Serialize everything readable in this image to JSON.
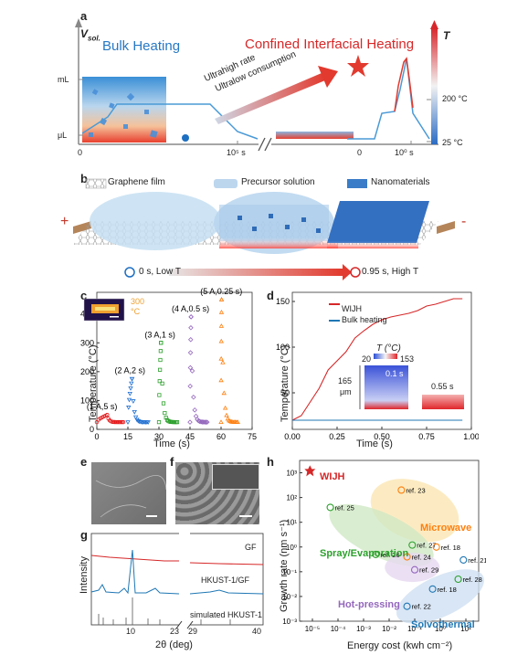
{
  "panels": {
    "a": {
      "label": "a",
      "ylabel": "V",
      "ylabel_sub": "sol.",
      "right_axis_label": "T",
      "bulk_title": "Bulk Heating",
      "confined_title": "Confined Interfacial Heating",
      "arrow_text_1": "Ultrahigh rate",
      "arrow_text_2": "Ultralow consumption",
      "y_ticks": [
        "mL",
        "μL"
      ],
      "x_ticks_left": [
        "0",
        "10⁵ s"
      ],
      "x_ticks_right": [
        "0",
        "10⁰ s"
      ],
      "right_ticks": [
        "200 °C",
        "25 °C"
      ],
      "colors": {
        "bulk": "#1f77b4",
        "confined": "#d62728"
      }
    },
    "b": {
      "label": "b",
      "legend": [
        "Graphene film",
        "Precursor solution",
        "Nanomaterials"
      ],
      "plus": "+",
      "minus": "-",
      "time_left": "0 s, Low T",
      "time_right": "0.95 s, High T"
    },
    "c": {
      "label": "c",
      "xlabel": "Time (s)",
      "ylabel": "Temperature (°C)",
      "xticks": [
        "0",
        "15",
        "30",
        "45",
        "60",
        "75"
      ],
      "yticks": [
        "0",
        "100",
        "200",
        "300",
        "400"
      ],
      "inset_label_1": "300",
      "inset_label_2": "°C",
      "pulses": [
        {
          "label": "(1 A,5 s)",
          "start": 0,
          "dur": 5,
          "peak": 50,
          "color": "#e41a1c",
          "marker": "circle"
        },
        {
          "label": "(2 A,2 s)",
          "start": 15,
          "dur": 2,
          "peak": 175,
          "color": "#1f6fd1",
          "marker": "triangle-down"
        },
        {
          "label": "(3 A,1 s)",
          "start": 30,
          "dur": 1,
          "peak": 300,
          "color": "#2ca02c",
          "marker": "square"
        },
        {
          "label": "(4 A,0.5 s)",
          "start": 45,
          "dur": 0.5,
          "peak": 390,
          "color": "#9467bd",
          "marker": "diamond"
        },
        {
          "label": "(5 A,0.25 s)",
          "start": 60,
          "dur": 0.25,
          "peak": 450,
          "color": "#ff7f0e",
          "marker": "triangle-up"
        }
      ]
    },
    "d": {
      "label": "d",
      "xlabel": "Time (s)",
      "ylabel": "Temperature (°C)",
      "xticks": [
        "0.00",
        "0.25",
        "0.50",
        "0.75",
        "1.00"
      ],
      "yticks": [
        "50",
        "100",
        "150"
      ],
      "legend": [
        "WIJH",
        "Bulk heating"
      ],
      "colorbar_title": "T (°C)",
      "colorbar_min": "20",
      "colorbar_max": "153",
      "inset_thickness": "165",
      "inset_unit": "μm",
      "inset_time_1": "0.1 s",
      "inset_time_2": "0.55 s",
      "series": [
        {
          "name": "WIJH",
          "color": "#d62728",
          "x": [
            0,
            0.05,
            0.1,
            0.15,
            0.2,
            0.25,
            0.3,
            0.35,
            0.4,
            0.45,
            0.5,
            0.55,
            0.6,
            0.65,
            0.7,
            0.75,
            0.8,
            0.85,
            0.9,
            0.95
          ],
          "y": [
            20,
            25,
            40,
            55,
            75,
            85,
            95,
            110,
            118,
            125,
            130,
            133,
            135,
            137,
            140,
            145,
            147,
            150,
            153,
            153
          ]
        },
        {
          "name": "Bulk heating",
          "color": "#1f77b4",
          "x": [
            0,
            0.95
          ],
          "y": [
            20,
            20
          ]
        }
      ]
    },
    "e": {
      "label": "e"
    },
    "f": {
      "label": "f"
    },
    "g": {
      "label": "g",
      "ylabel": "Intensity",
      "xlabel": "2θ (deg)",
      "xticks": [
        "10",
        "23",
        "29",
        "40"
      ],
      "traces": [
        "GF",
        "HKUST-1/GF",
        "simulated HKUST-1"
      ]
    },
    "h": {
      "label": "h",
      "xlabel": "Energy cost (kwh cm⁻²)",
      "ylabel": "Growth rate (nm s⁻¹)",
      "xticks": [
        "10⁻⁵",
        "10⁻⁴",
        "10⁻³",
        "10⁻²",
        "10⁻¹",
        "10⁰",
        "10¹"
      ],
      "yticks": [
        "10³",
        "10²",
        "10¹",
        "10⁰",
        "10⁻¹",
        "10⁻²",
        "10⁻³"
      ],
      "wijh_label": "WIJH",
      "regions": [
        "Microwave",
        "Spray/Evaporation",
        "Hot-pressing",
        "Solvothermal"
      ],
      "refs": [
        {
          "label": "ref. 23",
          "x": 0.03,
          "y": 200,
          "color": "#ff7f0e"
        },
        {
          "label": "ref. 25",
          "x": 5e-05,
          "y": 40,
          "color": "#2ca02c"
        },
        {
          "label": "ref. 27",
          "x": 0.08,
          "y": 1.2,
          "color": "#2ca02c"
        },
        {
          "label": "ref. 18",
          "x": 0.7,
          "y": 1.0,
          "color": "#ff7f0e"
        },
        {
          "label": "ref. 26",
          "x": 0.003,
          "y": 0.5,
          "color": "#2ca02c"
        },
        {
          "label": "ref. 24",
          "x": 0.05,
          "y": 0.4,
          "color": "#ff7f0e"
        },
        {
          "label": "ref. 29",
          "x": 0.1,
          "y": 0.12,
          "color": "#9467bd"
        },
        {
          "label": "ref. 21",
          "x": 8,
          "y": 0.3,
          "color": "#1f77b4"
        },
        {
          "label": "ref. 18",
          "x": 0.5,
          "y": 0.02,
          "color": "#1f77b4"
        },
        {
          "label": "ref. 28",
          "x": 5,
          "y": 0.05,
          "color": "#2ca02c"
        },
        {
          "label": "ref. 22",
          "x": 0.05,
          "y": 0.004,
          "color": "#1f77b4"
        }
      ]
    }
  }
}
